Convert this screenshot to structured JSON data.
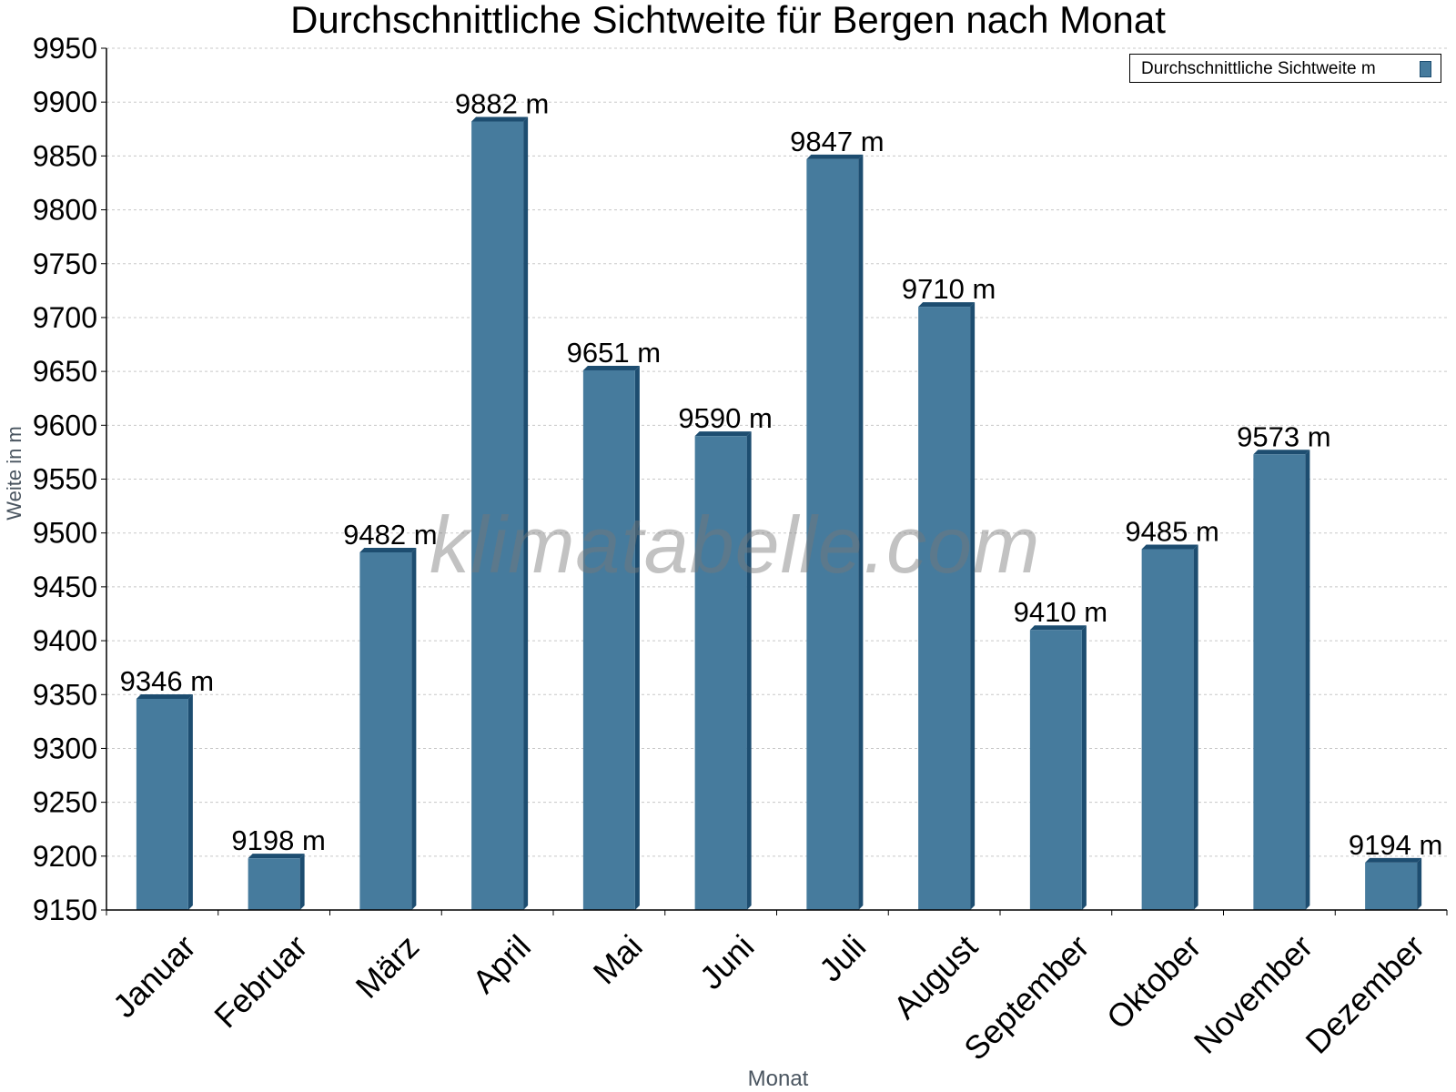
{
  "chart_data": {
    "type": "bar",
    "title": "Durchschnittliche Sichtweite für Bergen nach Monat",
    "xlabel": "Monat",
    "ylabel": "Weite in m",
    "categories": [
      "Januar",
      "Februar",
      "März",
      "April",
      "Mai",
      "Juni",
      "Juli",
      "August",
      "September",
      "Oktober",
      "November",
      "Dezember"
    ],
    "series": [
      {
        "name": "Durchschnittliche Sichtweite m",
        "values": [
          9346,
          9198,
          9482,
          9882,
          9651,
          9590,
          9847,
          9710,
          9410,
          9485,
          9573,
          9194
        ],
        "labels": [
          "9346 m",
          "9198 m",
          "9482 m",
          "9882 m",
          "9651 m",
          "9590 m",
          "9847 m",
          "9710 m",
          "9410 m",
          "9485 m",
          "9573 m",
          "9194 m"
        ]
      }
    ],
    "ylim": [
      9150,
      9950
    ],
    "yticks": [
      "9150",
      "9200",
      "9250",
      "9300",
      "9350",
      "9400",
      "9450",
      "9500",
      "9550",
      "9600",
      "9650",
      "9700",
      "9750",
      "9800",
      "9850",
      "9900",
      "9950"
    ],
    "grid": true,
    "legend_position": "top-right",
    "bar_color": "#467b9d",
    "bar_edge_color": "#1d4d70",
    "watermark": "klimatabelle.com"
  }
}
